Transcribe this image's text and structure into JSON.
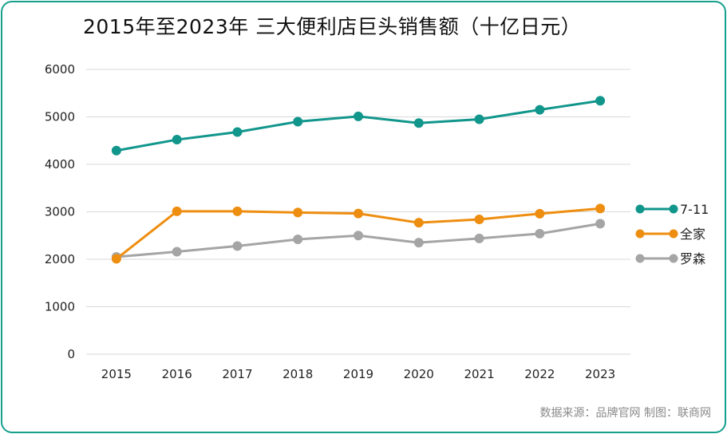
{
  "title": "2015年至2023年 三大便利店巨头销售额（十亿日元）",
  "source": "数据来源：品牌官网  制图：联商网",
  "colors": {
    "border": "#16a08e",
    "grid": "#d9d9d9",
    "seven_eleven": "#11968c",
    "familymart": "#ee8e10",
    "lawson": "#a5a5a5"
  },
  "chart_data": {
    "type": "line",
    "x": [
      "2015",
      "2016",
      "2017",
      "2018",
      "2019",
      "2020",
      "2021",
      "2022",
      "2023"
    ],
    "ylim": [
      0,
      6000
    ],
    "yticks": [
      "0",
      "1000",
      "2000",
      "3000",
      "4000",
      "5000",
      "6000"
    ],
    "grid": true,
    "legend_position": "right",
    "series": [
      {
        "name": "7-11",
        "color_key": "seven_eleven",
        "values": [
          4290,
          4520,
          4680,
          4900,
          5010,
          4870,
          4950,
          5150,
          5340
        ]
      },
      {
        "name": "全家",
        "color_key": "familymart",
        "values": [
          2010,
          3010,
          3010,
          2985,
          2965,
          2770,
          2840,
          2960,
          3070
        ]
      },
      {
        "name": "罗森",
        "color_key": "lawson",
        "values": [
          2050,
          2160,
          2280,
          2420,
          2500,
          2350,
          2440,
          2540,
          2750
        ]
      }
    ]
  }
}
